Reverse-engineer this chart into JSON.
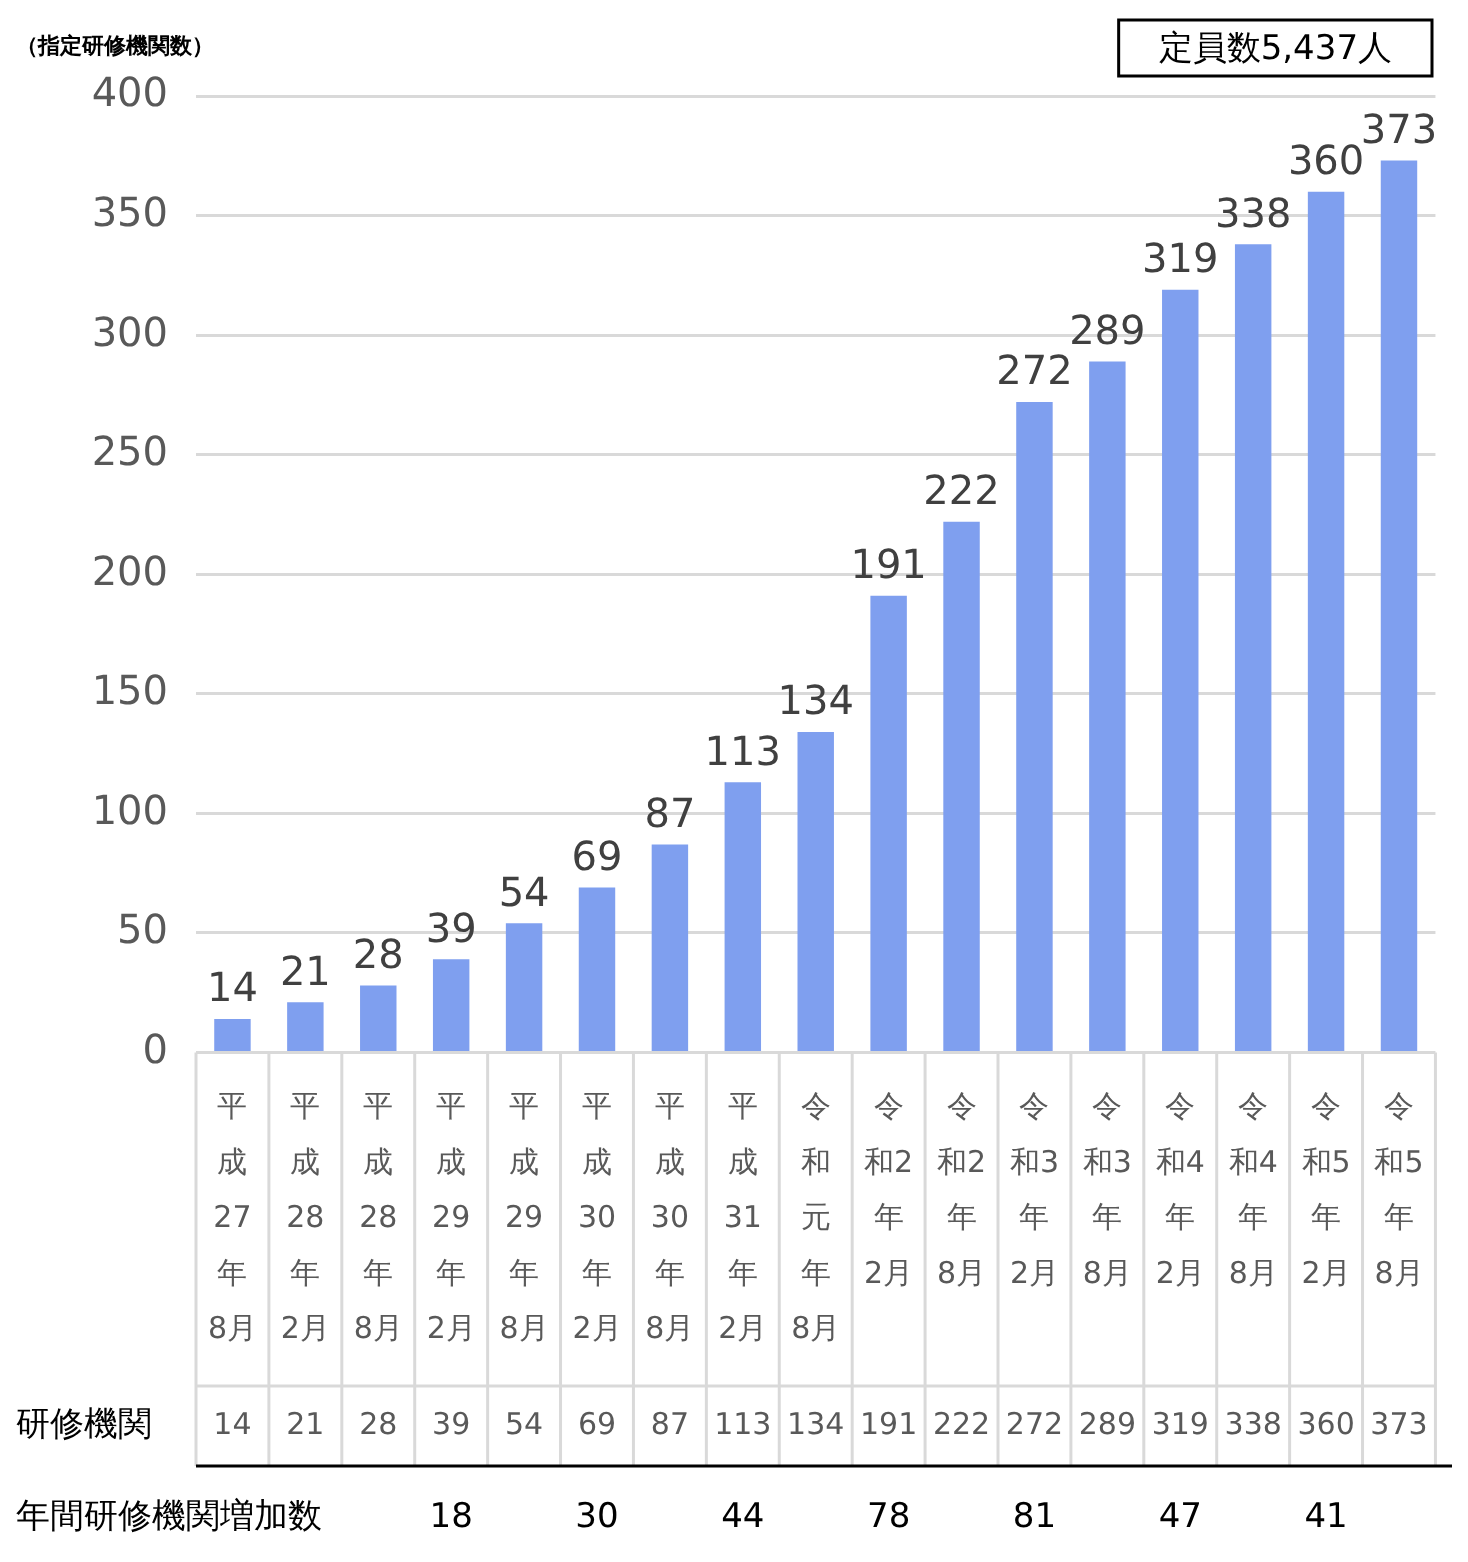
{
  "chart_data": {
    "type": "bar",
    "ylabel": "（指定研修機関数）",
    "categories": [
      "平成27年8月",
      "平成28年2月",
      "平成28年8月",
      "平成29年2月",
      "平成29年8月",
      "平成30年2月",
      "平成30年8月",
      "平成31年2月",
      "令和元年8月",
      "令和2年2月",
      "令和2年8月",
      "令和3年2月",
      "令和3年8月",
      "令和4年2月",
      "令和4年8月",
      "令和5年2月",
      "令和5年8月"
    ],
    "values": [
      14,
      21,
      28,
      39,
      54,
      69,
      87,
      113,
      134,
      191,
      222,
      272,
      289,
      319,
      338,
      360,
      373
    ],
    "value_labels": [
      "14",
      "21",
      "28",
      "39",
      "54",
      "69",
      "87",
      "113",
      "134",
      "191",
      "222",
      "272",
      "289",
      "319",
      "338",
      "360",
      "373"
    ],
    "color": "#7f9fef",
    "ylim": [
      0,
      400
    ],
    "yticks": [
      0,
      50,
      100,
      150,
      200,
      250,
      300,
      350,
      400
    ],
    "grid": "y",
    "legend": false,
    "annotations": [
      "定員数5,437人",
      "研修機関",
      "14",
      "21",
      "28",
      "39",
      "54",
      "69",
      "87",
      "113",
      "134",
      "191",
      "222",
      "272",
      "289",
      "319",
      "338",
      "360",
      "373",
      "年間研修機関増加数",
      "18",
      "30",
      "44",
      "78",
      "81",
      "47",
      "41"
    ]
  }
}
